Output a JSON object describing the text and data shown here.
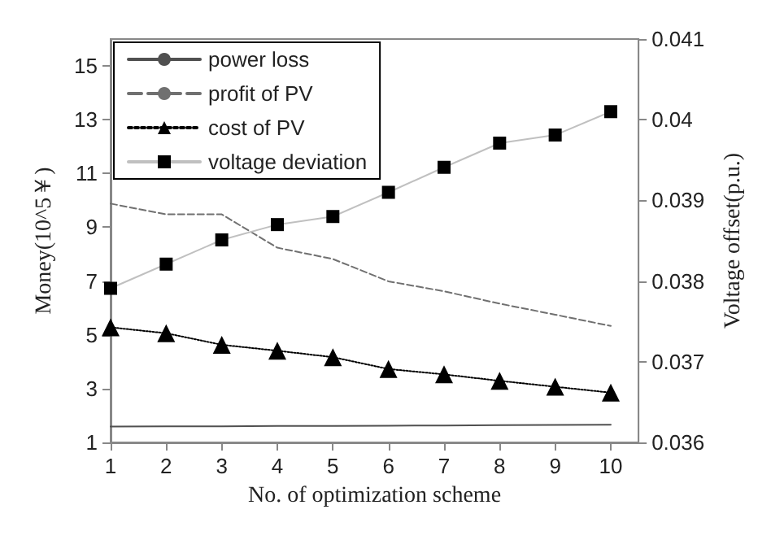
{
  "chart_data": {
    "type": "line",
    "xlabel": "No. of optimization scheme",
    "ylabel": "Money(10^5￥)",
    "y2label": "Voltage offset(p.u.)",
    "x": [
      1,
      2,
      3,
      4,
      5,
      6,
      7,
      8,
      9,
      10
    ],
    "xlim": [
      1,
      10.5
    ],
    "xticks": [
      1,
      2,
      3,
      4,
      5,
      6,
      7,
      8,
      9,
      10
    ],
    "ylim": [
      1,
      16
    ],
    "yticks": [
      1,
      3,
      5,
      7,
      9,
      11,
      13,
      15
    ],
    "y2lim": [
      0.036,
      0.041
    ],
    "y2ticks": [
      0.036,
      0.037,
      0.038,
      0.039,
      0.04,
      0.041
    ],
    "grid": false,
    "legend": "top left",
    "series": [
      {
        "name": "power loss",
        "color": "#505050",
        "line_style": "solid",
        "marker": "none",
        "values": [
          1.59,
          1.6,
          1.6,
          1.61,
          1.61,
          1.62,
          1.63,
          1.64,
          1.65,
          1.66
        ]
      },
      {
        "name": "profit of PV",
        "color": "#707070",
        "line_style": "dashed",
        "marker": "none",
        "values": [
          9.88,
          9.48,
          9.48,
          8.24,
          7.82,
          6.99,
          6.62,
          6.16,
          5.75,
          5.33
        ]
      },
      {
        "name": "cost of PV",
        "color": "#000000",
        "line_style": "dotted",
        "marker": "triangle",
        "values": [
          5.28,
          5.06,
          4.63,
          4.41,
          4.17,
          3.73,
          3.53,
          3.29,
          3.07,
          2.85
        ]
      },
      {
        "name": "voltage deviation",
        "color": "#c0c0c0",
        "line_style": "solid",
        "marker": "square",
        "axis": "y2",
        "values": [
          0.03791,
          0.03821,
          0.03851,
          0.0387,
          0.0388,
          0.0391,
          0.03941,
          0.03971,
          0.03981,
          0.0401
        ]
      }
    ]
  }
}
